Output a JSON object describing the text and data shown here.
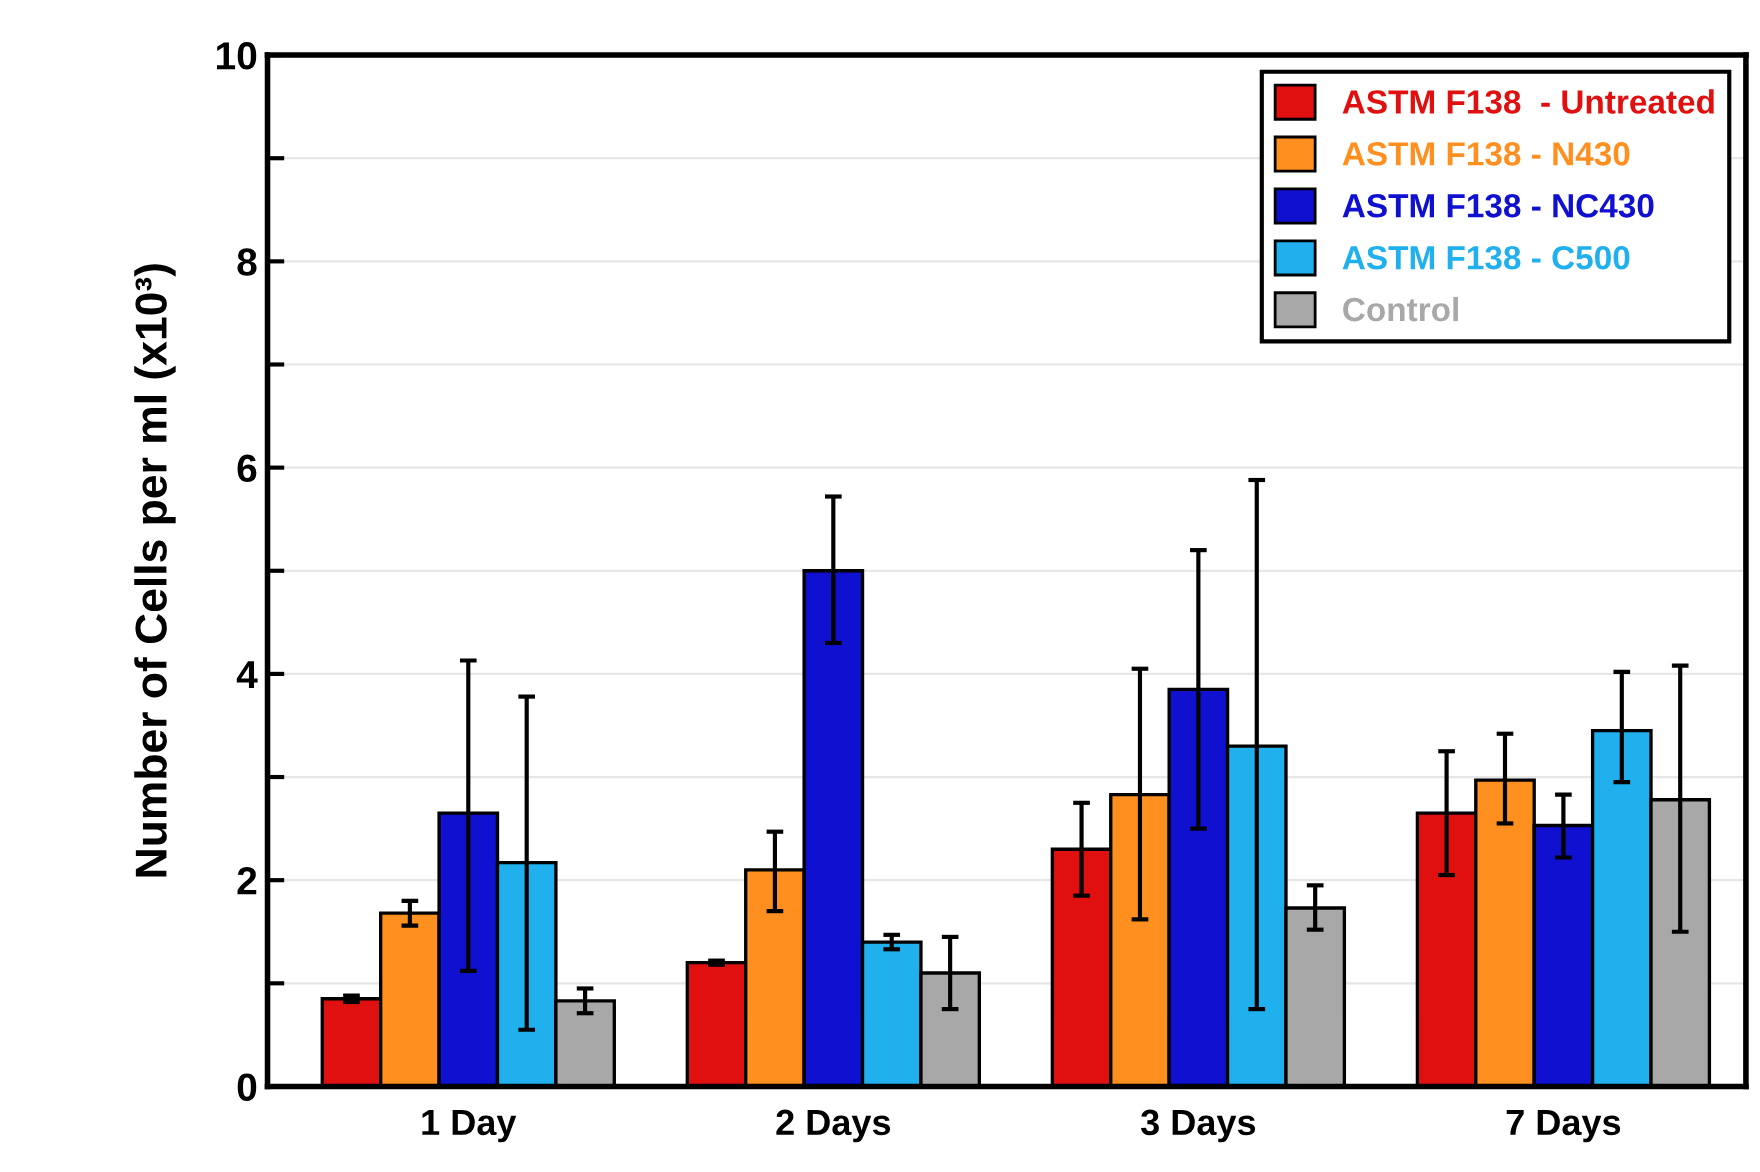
{
  "chart_data": {
    "type": "bar",
    "ylabel": "Number of Cells per ml (x10³)",
    "categories": [
      "1 Day",
      "2 Days",
      "3 Days",
      "7 Days"
    ],
    "series": [
      {
        "name": "ASTM F138  - Untreated",
        "color": "#e01010",
        "values": [
          0.85,
          1.2,
          2.3,
          2.65
        ],
        "errors": [
          0.03,
          0.02,
          [
            1.85,
            2.75
          ],
          [
            2.05,
            3.25
          ]
        ]
      },
      {
        "name": "ASTM F138 - N430",
        "color": "#ff9020",
        "values": [
          1.68,
          2.1,
          2.83,
          2.97
        ],
        "errors": [
          0.12,
          [
            1.7,
            2.47
          ],
          [
            1.62,
            4.05
          ],
          [
            2.55,
            3.42
          ]
        ]
      },
      {
        "name": "ASTM F138 - NC430",
        "color": "#1010d0",
        "values": [
          2.65,
          5.0,
          3.85,
          2.53
        ],
        "errors": [
          [
            1.12,
            4.13
          ],
          [
            4.3,
            5.72
          ],
          [
            2.5,
            5.2
          ],
          [
            2.22,
            2.83
          ]
        ]
      },
      {
        "name": "ASTM F138 - C500",
        "color": "#20b0ee",
        "values": [
          2.17,
          1.4,
          3.3,
          3.45
        ],
        "errors": [
          [
            0.55,
            3.78
          ],
          0.07,
          [
            0.75,
            5.88
          ],
          [
            2.95,
            4.02
          ]
        ]
      },
      {
        "name": "Control",
        "color": "#a8a8a8",
        "values": [
          0.83,
          1.1,
          1.73,
          2.78
        ],
        "errors": [
          0.12,
          [
            0.75,
            1.45
          ],
          [
            1.52,
            1.95
          ],
          [
            1.5,
            4.08
          ]
        ]
      }
    ],
    "ylim": [
      0,
      10
    ],
    "yticks": [
      0,
      {
        "value": 1,
        "label": null
      },
      2,
      {
        "value": 3,
        "label": null
      },
      4,
      {
        "value": 5,
        "label": null
      },
      6,
      {
        "value": 7,
        "label": null
      },
      8,
      {
        "value": 9,
        "label": null
      },
      10
    ],
    "grid": "y",
    "legend": "top right"
  }
}
